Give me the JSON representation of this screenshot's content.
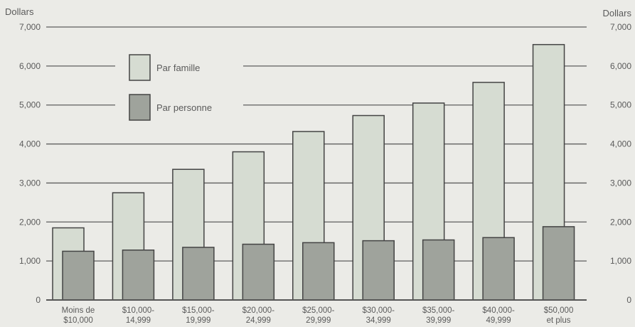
{
  "chart_data": {
    "type": "bar",
    "y_unit_left": "Dollars",
    "y_unit_right": "Dollars",
    "ylim": [
      0,
      7000
    ],
    "yticks_left": [
      "0",
      "1,000",
      "2,000",
      "3,000",
      "4,000",
      "5,000",
      "6,000",
      "7,000"
    ],
    "yticks_right": [
      "0",
      "1,000",
      "2,000",
      "3,000",
      "4,000",
      "5,000",
      "6,000",
      "7,000"
    ],
    "grid": true,
    "legend_position": "top-left",
    "categories": [
      [
        "Moins de",
        "$10,000"
      ],
      [
        "$10,000-",
        "14,999"
      ],
      [
        "$15,000-",
        "19,999"
      ],
      [
        "$20,000-",
        "24,999"
      ],
      [
        "$25,000-",
        "29,999"
      ],
      [
        "$30,000-",
        "34,999"
      ],
      [
        "$35,000-",
        "39,999"
      ],
      [
        "$40,000-",
        "49,999"
      ],
      [
        "$50,000",
        "et plus"
      ]
    ],
    "series": [
      {
        "name": "Par famille",
        "color": "#d6dcd2",
        "values": [
          1850,
          2750,
          3350,
          3800,
          4320,
          4730,
          5050,
          5580,
          6550
        ]
      },
      {
        "name": "Par personne",
        "color": "#9fa39c",
        "values": [
          1250,
          1280,
          1350,
          1430,
          1470,
          1520,
          1540,
          1600,
          1880
        ]
      }
    ]
  }
}
